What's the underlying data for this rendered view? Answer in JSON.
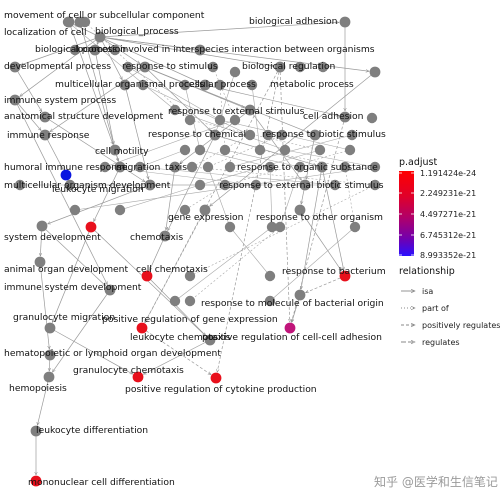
{
  "graph": {
    "node_colors": {
      "default": "#7f7f7f",
      "significant": "#e8101c",
      "medium": "#c0157a",
      "top": "#0a16e0"
    },
    "nodes": [
      {
        "id": "n1",
        "label": "movement of cell or subcellular component",
        "color": "default"
      },
      {
        "id": "n2",
        "label": "biological adhesion",
        "color": "default"
      },
      {
        "id": "n3",
        "label": "localization of cell",
        "color": "default"
      },
      {
        "id": "n4",
        "label": "biological_process",
        "color": "default"
      },
      {
        "id": "n5",
        "label": "biological process involved in interspecies interaction between organisms",
        "color": "default"
      },
      {
        "id": "n6",
        "label": "locomotion",
        "color": "default"
      },
      {
        "id": "n7",
        "label": "developmental process",
        "color": "default"
      },
      {
        "id": "n8",
        "label": "response to stimulus",
        "color": "default"
      },
      {
        "id": "n9",
        "label": "biological regulation",
        "color": "default"
      },
      {
        "id": "n10",
        "label": "multicellular organismal process",
        "color": "default"
      },
      {
        "id": "n11",
        "label": "cellular process",
        "color": "default"
      },
      {
        "id": "n12",
        "label": "metabolic process",
        "color": "default"
      },
      {
        "id": "n13",
        "label": "immune system process",
        "color": "default"
      },
      {
        "id": "n14",
        "label": "response to external stimulus",
        "color": "default"
      },
      {
        "id": "n15",
        "label": "anatomical structure development",
        "color": "default"
      },
      {
        "id": "n16",
        "label": "cell adhesion",
        "color": "default"
      },
      {
        "id": "n17",
        "label": "immune response",
        "color": "default"
      },
      {
        "id": "n18",
        "label": "response to chemical",
        "color": "default"
      },
      {
        "id": "n19",
        "label": "response to biotic stimulus",
        "color": "default"
      },
      {
        "id": "n20",
        "label": "cell motility",
        "color": "default"
      },
      {
        "id": "n21",
        "label": "humoral immune response",
        "color": "top"
      },
      {
        "id": "n22",
        "label": "migration",
        "color": "default"
      },
      {
        "id": "n23",
        "label": "taxis",
        "color": "default"
      },
      {
        "id": "n24",
        "label": "response to organic substance",
        "color": "default"
      },
      {
        "id": "n25",
        "label": "multicellular organism development",
        "color": "default"
      },
      {
        "id": "n26",
        "label": "response to external biotic stimulus",
        "color": "default"
      },
      {
        "id": "n27",
        "label": "leukocyte migration",
        "color": "significant"
      },
      {
        "id": "n28",
        "label": "gene expression",
        "color": "default"
      },
      {
        "id": "n29",
        "label": "response to other organism",
        "color": "default"
      },
      {
        "id": "n30",
        "label": "system development",
        "color": "default"
      },
      {
        "id": "n31",
        "label": "chemotaxis",
        "color": "default"
      },
      {
        "id": "n32",
        "label": "animal organ development",
        "color": "default"
      },
      {
        "id": "n33",
        "label": "cell chemotaxis",
        "color": "significant"
      },
      {
        "id": "n34",
        "label": "response to bacterium",
        "color": "significant"
      },
      {
        "id": "n35",
        "label": "immune system development",
        "color": "default"
      },
      {
        "id": "n36",
        "label": "response to molecule of bacterial origin",
        "color": "default"
      },
      {
        "id": "n37",
        "label": "granulocyte migration",
        "color": "default"
      },
      {
        "id": "n38",
        "label": "positive regulation of gene expression",
        "color": "significant"
      },
      {
        "id": "n39",
        "label": "leukocyte chemotaxis",
        "color": "default"
      },
      {
        "id": "n40",
        "label": "positive regulation of cell-cell adhesion",
        "color": "medium"
      },
      {
        "id": "n41",
        "label": "hematopoietic or lymphoid organ development",
        "color": "default"
      },
      {
        "id": "n42",
        "label": "granulocyte chemotaxis",
        "color": "significant"
      },
      {
        "id": "n43",
        "label": "hemopoiesis",
        "color": "default"
      },
      {
        "id": "n44",
        "label": "positive regulation of cytokine production",
        "color": "significant"
      },
      {
        "id": "n45",
        "label": "leukocyte differentiation",
        "color": "default"
      },
      {
        "id": "n46",
        "label": "mononuclear cell differentiation",
        "color": "significant"
      }
    ],
    "unlabeled_node_count": 58
  },
  "legend": {
    "colorbar_title": "p.adjust",
    "colorbar_ticks": [
      "1.191424e-24",
      "2.249231e-21",
      "4.497271e-21",
      "6.745312e-21",
      "8.993352e-21"
    ],
    "colorbar_gradient": [
      "#ff0000",
      "#e0002a",
      "#b0006a",
      "#7000b0",
      "#2a10ff"
    ],
    "relationship_title": "relationship",
    "relationship_items": [
      {
        "label": "isa",
        "style": "solid"
      },
      {
        "label": "part of",
        "style": "dotted"
      },
      {
        "label": "positively regulates",
        "style": "dashed"
      },
      {
        "label": "regulates",
        "style": "longdash"
      }
    ]
  },
  "watermark": {
    "text": "知乎 @医学和生信笔记"
  }
}
